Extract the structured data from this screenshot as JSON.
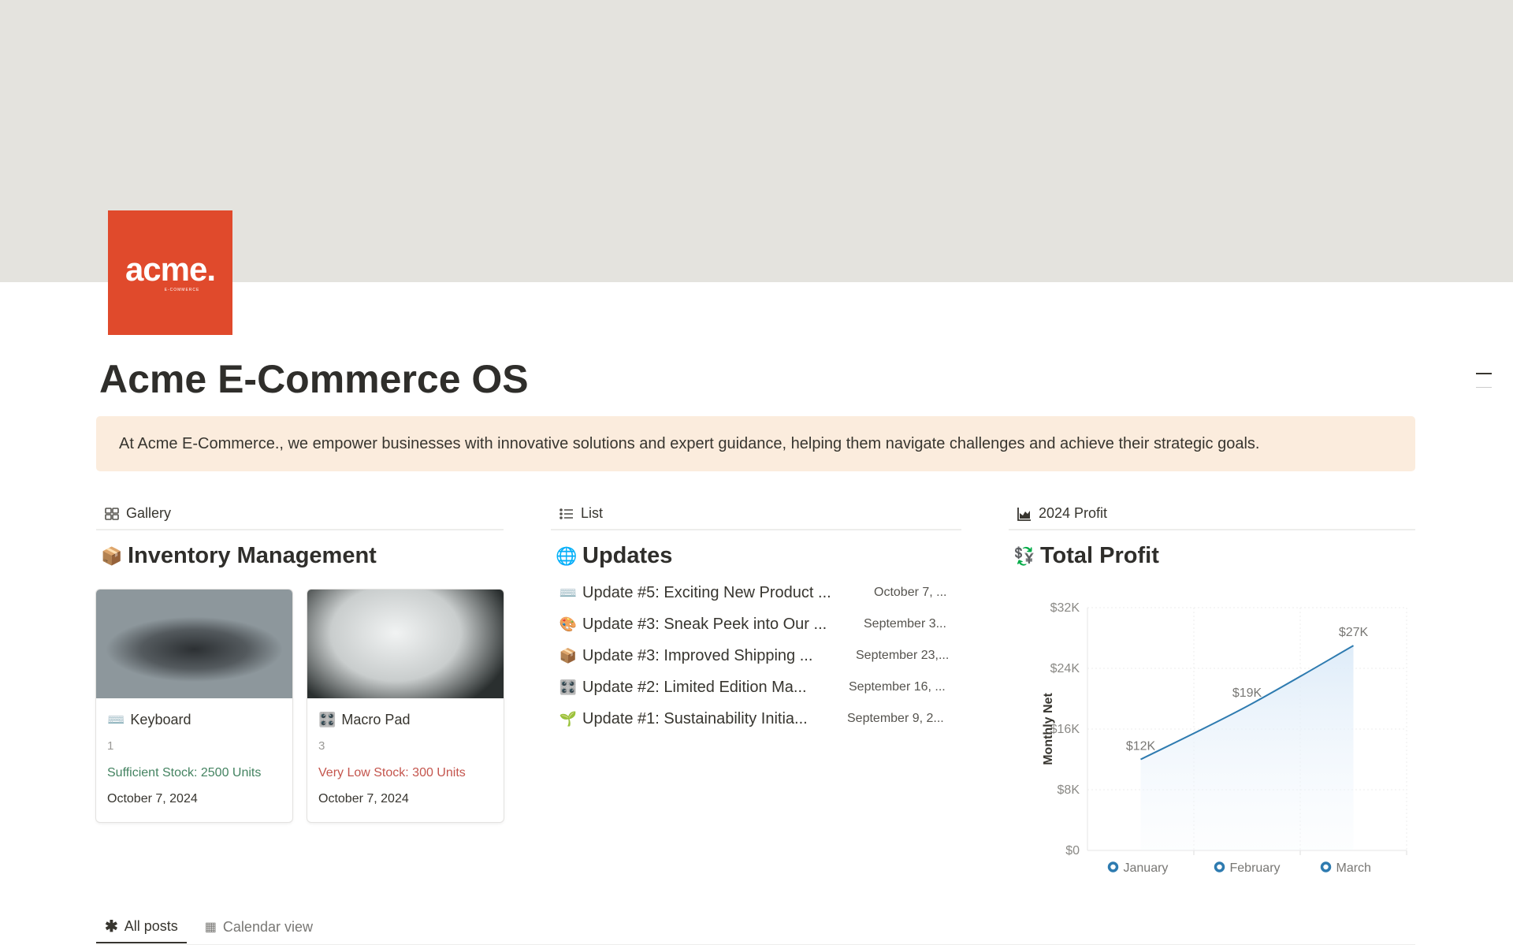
{
  "page": {
    "logo_text": "acme.",
    "logo_sub": "E-COMMERCE",
    "title": "Acme E-Commerce OS",
    "callout": "At Acme E-Commerce., we empower businesses with innovative solutions and expert guidance, helping them navigate challenges and achieve their strategic goals."
  },
  "gallery": {
    "tab": "Gallery",
    "heading": "Inventory Management",
    "cards": [
      {
        "icon": "⌨️",
        "title": "Keyboard",
        "number": "1",
        "stock": "Sufficient Stock: 2500 Units",
        "stock_color": "#448361",
        "date": "October 7, 2024"
      },
      {
        "icon": "🎛️",
        "title": "Macro Pad",
        "number": "3",
        "stock": "Very Low Stock: 300 Units",
        "stock_color": "#c4554d",
        "date": "October 7, 2024"
      }
    ]
  },
  "updates": {
    "tab": "List",
    "heading": "Updates",
    "items": [
      {
        "icon": "⌨️",
        "title": "Update #5: Exciting New Product ...",
        "date": "October 7, ..."
      },
      {
        "icon": "🎨",
        "title": "Update #3: Sneak Peek into Our ...",
        "date": "September 3..."
      },
      {
        "icon": "📦",
        "title": "Update #3: Improved Shipping ...",
        "date": "September 23,..."
      },
      {
        "icon": "🎛️",
        "title": "Update #2: Limited Edition Ma...",
        "date": "September 16, ..."
      },
      {
        "icon": "🌱",
        "title": "Update #1: Sustainability Initia...",
        "date": "September 9, 2..."
      }
    ]
  },
  "profit": {
    "tab": "2024 Profit",
    "heading": "Total Profit"
  },
  "chart_data": {
    "type": "area",
    "categories": [
      "January",
      "February",
      "March"
    ],
    "values": [
      12000,
      19000,
      27000
    ],
    "data_labels": [
      "$12K",
      "$19K",
      "$27K"
    ],
    "ylabel": "Monthly Net",
    "ylim": [
      0,
      32000
    ],
    "yticks": [
      "$0",
      "$8K",
      "$16K",
      "$24K",
      "$32K"
    ],
    "grid": true,
    "legend": "bottom",
    "color": "#2e7bb0"
  },
  "bottom_tabs": [
    {
      "label": "All posts",
      "active": true
    },
    {
      "label": "Calendar view",
      "active": false
    }
  ]
}
